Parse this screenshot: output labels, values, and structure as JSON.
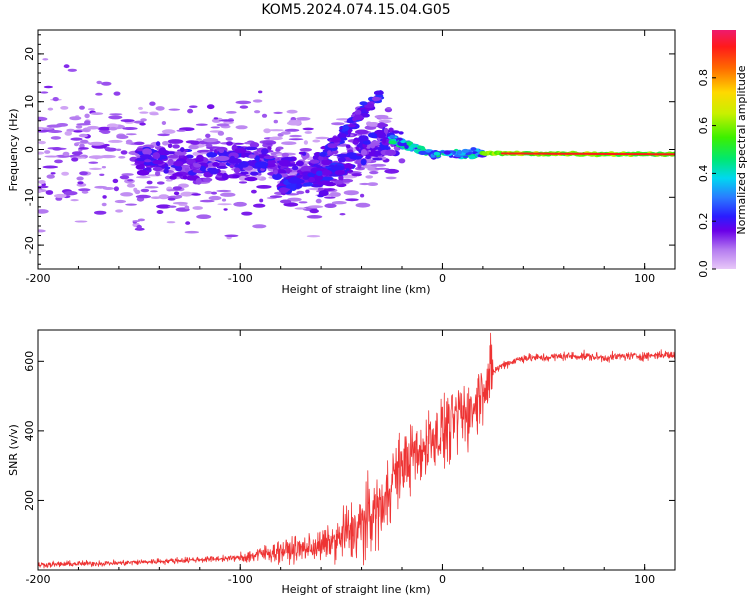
{
  "title": "KOM5.2024.074.15.04.G05",
  "chart_data": [
    {
      "type": "heatmap",
      "xlabel": "Height of straight line (km)",
      "ylabel": "Frequency (Hz)",
      "xlim": [
        -200,
        115
      ],
      "ylim": [
        -25,
        25
      ],
      "xticks": [
        "-200",
        "-100",
        "0",
        "100"
      ],
      "yticks": [
        "-20",
        "-10",
        "0",
        "10",
        "20"
      ],
      "colorbar": {
        "label": "Normalized spectral amplitude",
        "range": [
          0,
          1
        ],
        "ticks": [
          "0.0",
          "0.2",
          "0.4",
          "0.6",
          "0.8"
        ]
      },
      "trend": [
        {
          "x": -200,
          "y": 0
        },
        {
          "x": -120,
          "y": -3
        },
        {
          "x": -90,
          "y": -2
        },
        {
          "x": -60,
          "y": -6
        },
        {
          "x": -40,
          "y": 0
        },
        {
          "x": -25,
          "y": 2
        },
        {
          "x": -5,
          "y": -1
        },
        {
          "x": 20,
          "y": -0.8
        },
        {
          "x": 115,
          "y": -1
        }
      ],
      "grid": false
    },
    {
      "type": "line",
      "xlabel": "Height of straight line (km)",
      "ylabel": "SNR (v/v)",
      "xlim": [
        -200,
        115
      ],
      "ylim": [
        0,
        690
      ],
      "xticks": [
        "-200",
        "-100",
        "0",
        "100"
      ],
      "yticks": [
        "200",
        "400",
        "600"
      ],
      "color": "#ee3333",
      "series": [
        {
          "x": [
            -200,
            -180,
            -160,
            -140,
            -120,
            -100,
            -90,
            -80,
            -70,
            -60,
            -50,
            -40,
            -30,
            -25,
            -20,
            -15,
            -10,
            -5,
            0,
            5,
            10,
            15,
            20,
            25,
            30,
            35,
            40,
            50,
            60,
            70,
            80,
            90,
            100,
            110,
            115
          ],
          "y": [
            15,
            18,
            20,
            25,
            30,
            35,
            45,
            55,
            60,
            70,
            90,
            130,
            190,
            260,
            300,
            320,
            340,
            390,
            400,
            420,
            450,
            460,
            520,
            570,
            590,
            600,
            610,
            610,
            615,
            615,
            610,
            615,
            615,
            620,
            615
          ]
        }
      ],
      "grid": false
    }
  ]
}
